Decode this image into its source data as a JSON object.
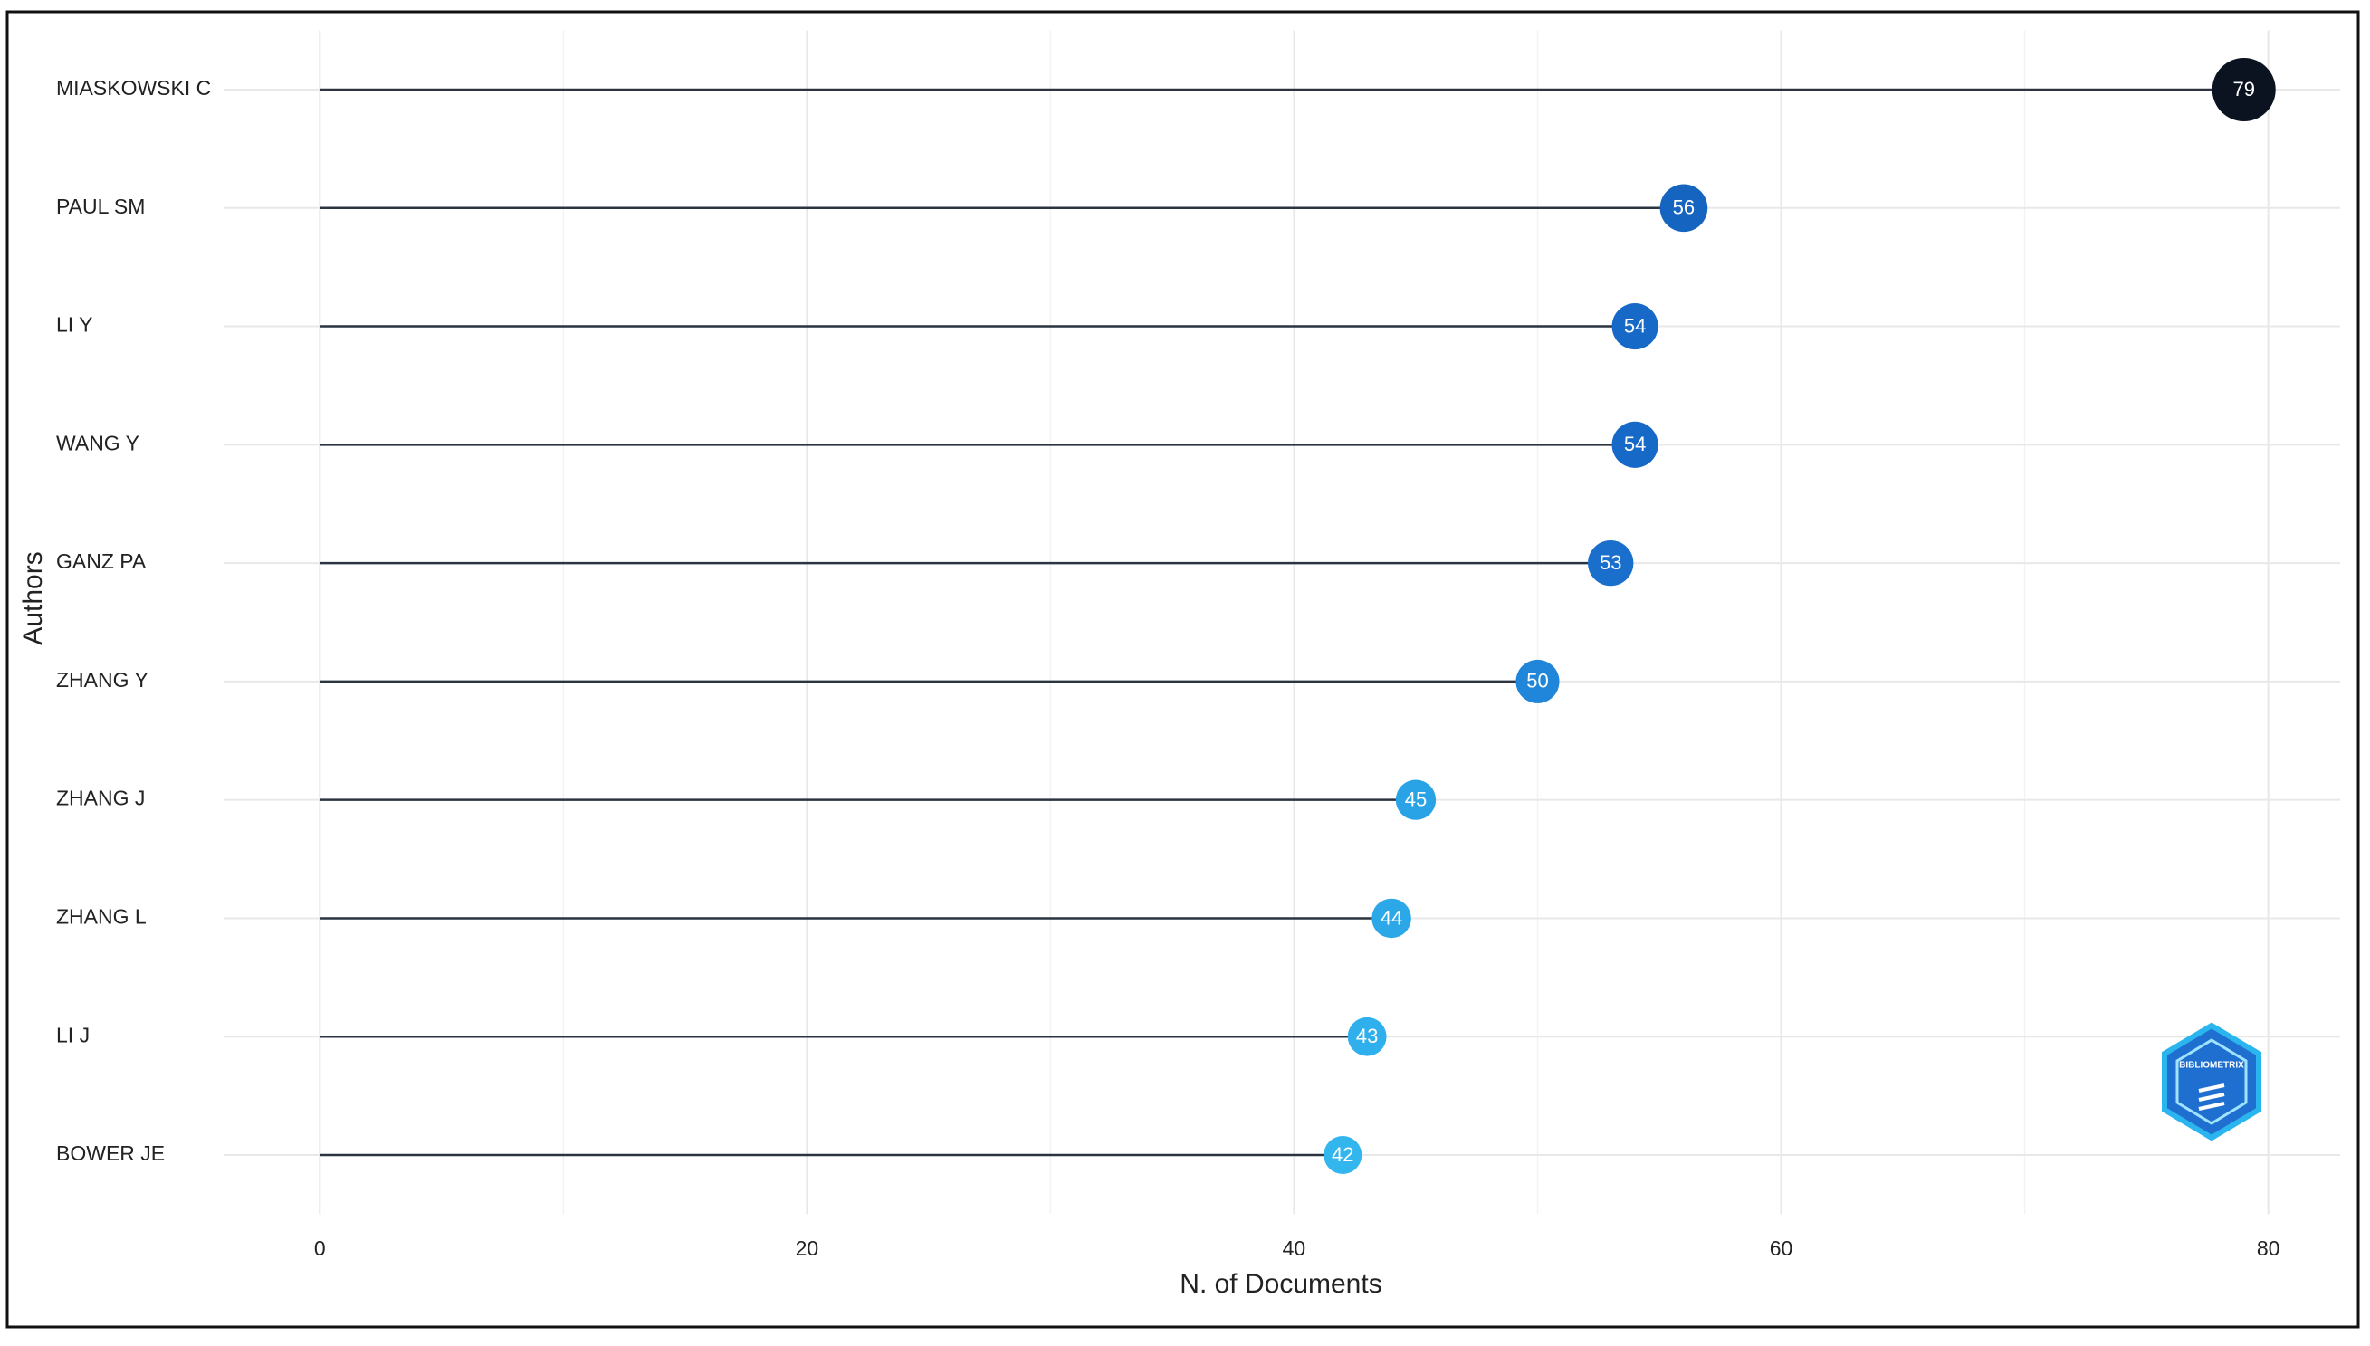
{
  "chart_data": {
    "type": "lollipop",
    "y_label": "Authors",
    "x_label": "N. of Documents",
    "categories": [
      "MIASKOWSKI C",
      "PAUL SM",
      "LI Y",
      "WANG Y",
      "GANZ PA",
      "ZHANG Y",
      "ZHANG J",
      "ZHANG L",
      "LI J",
      "BOWER JE"
    ],
    "values": [
      79,
      56,
      54,
      54,
      53,
      50,
      45,
      44,
      43,
      42
    ],
    "colors": [
      "#0b1220",
      "#1565c0",
      "#1769c8",
      "#1769c8",
      "#1a6fcc",
      "#1f86d9",
      "#2aa3e6",
      "#2ca8e8",
      "#2fb0ec",
      "#33b6ee"
    ],
    "xlim": [
      -3.95,
      82.95
    ],
    "xticks": [
      0,
      20,
      40,
      60,
      80
    ],
    "grid": true,
    "watermark": "BIBLIOMETRIX"
  }
}
